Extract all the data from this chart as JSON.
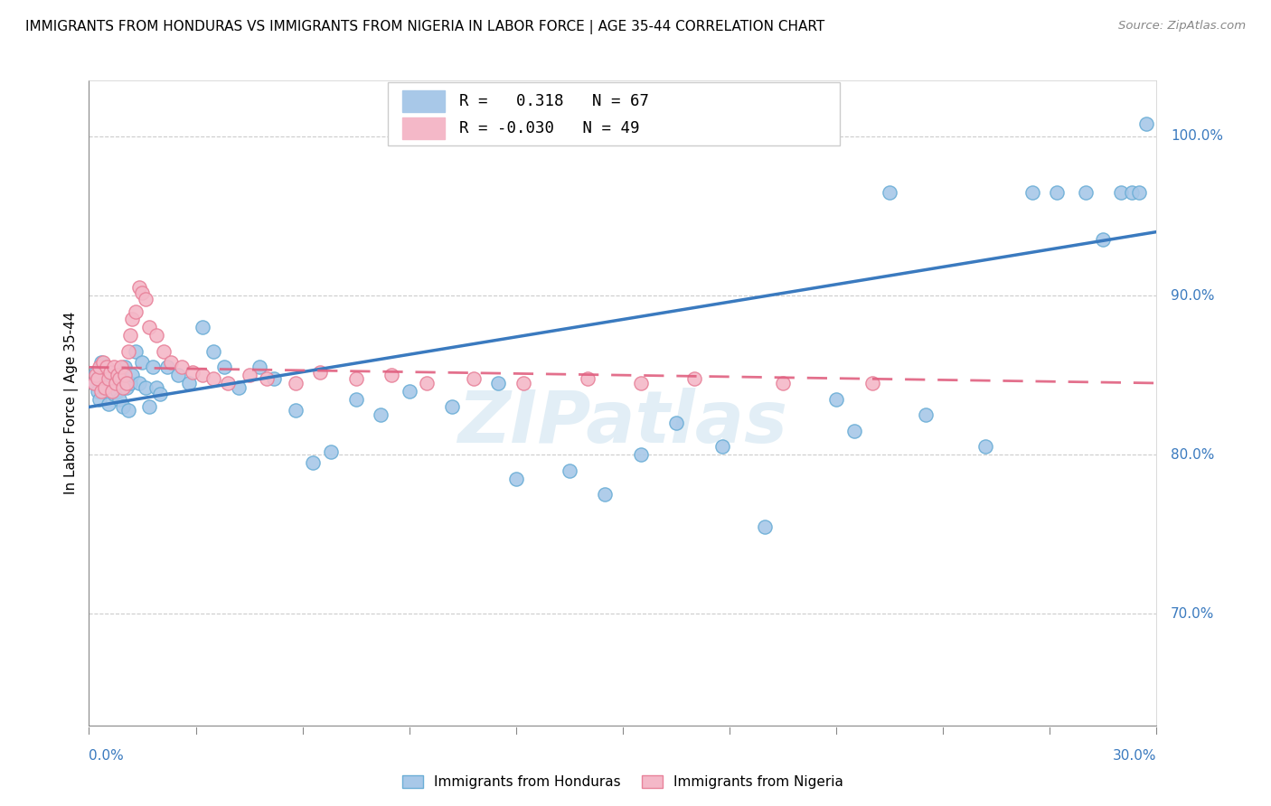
{
  "title": "IMMIGRANTS FROM HONDURAS VS IMMIGRANTS FROM NIGERIA IN LABOR FORCE | AGE 35-44 CORRELATION CHART",
  "source": "Source: ZipAtlas.com",
  "ylabel": "In Labor Force | Age 35-44",
  "yticks": [
    70.0,
    80.0,
    90.0,
    100.0
  ],
  "ytick_labels": [
    "70.0%",
    "80.0%",
    "90.0%",
    "100.0%"
  ],
  "xmin": 0.0,
  "xmax": 30.0,
  "ymin": 63.0,
  "ymax": 103.5,
  "r_honduras": 0.318,
  "n_honduras": 67,
  "r_nigeria": -0.03,
  "n_nigeria": 49,
  "blue_color": "#a8c8e8",
  "blue_edge_color": "#6baed6",
  "blue_line_color": "#3a7abf",
  "pink_color": "#f4b8c8",
  "pink_edge_color": "#e8829a",
  "pink_line_color": "#e06080",
  "watermark": "ZIPatlas",
  "legend_label_honduras": "Immigrants from Honduras",
  "legend_label_nigeria": "Immigrants from Nigeria",
  "hond_x": [
    0.15,
    0.2,
    0.25,
    0.3,
    0.35,
    0.4,
    0.45,
    0.5,
    0.55,
    0.6,
    0.65,
    0.7,
    0.75,
    0.8,
    0.85,
    0.9,
    0.95,
    1.0,
    1.05,
    1.1,
    1.15,
    1.2,
    1.3,
    1.4,
    1.5,
    1.6,
    1.7,
    1.8,
    1.9,
    2.0,
    2.2,
    2.5,
    2.8,
    3.2,
    3.5,
    3.8,
    4.2,
    4.8,
    5.2,
    5.8,
    6.3,
    6.8,
    7.5,
    8.2,
    9.0,
    10.2,
    11.5,
    12.0,
    13.5,
    14.5,
    15.5,
    16.5,
    17.8,
    19.0,
    21.5,
    23.5,
    25.2,
    26.5,
    27.2,
    28.0,
    28.5,
    29.0,
    29.3,
    29.5,
    29.7,
    21.0,
    22.5
  ],
  "hond_y": [
    84.5,
    85.2,
    84.0,
    83.5,
    85.8,
    84.2,
    85.5,
    84.8,
    83.2,
    85.0,
    84.5,
    83.8,
    85.2,
    84.0,
    83.5,
    84.8,
    83.0,
    85.5,
    84.2,
    82.8,
    84.5,
    85.0,
    86.5,
    84.5,
    85.8,
    84.2,
    83.0,
    85.5,
    84.2,
    83.8,
    85.5,
    85.0,
    84.5,
    88.0,
    86.5,
    85.5,
    84.2,
    85.5,
    84.8,
    82.8,
    79.5,
    80.2,
    83.5,
    82.5,
    84.0,
    83.0,
    84.5,
    78.5,
    79.0,
    77.5,
    80.0,
    82.0,
    80.5,
    75.5,
    81.5,
    82.5,
    80.5,
    96.5,
    96.5,
    96.5,
    93.5,
    96.5,
    96.5,
    96.5,
    100.8,
    83.5,
    96.5
  ],
  "nig_x": [
    0.15,
    0.2,
    0.25,
    0.3,
    0.35,
    0.4,
    0.45,
    0.5,
    0.55,
    0.6,
    0.65,
    0.7,
    0.75,
    0.8,
    0.85,
    0.9,
    0.95,
    1.0,
    1.05,
    1.1,
    1.15,
    1.2,
    1.3,
    1.4,
    1.5,
    1.6,
    1.7,
    1.9,
    2.1,
    2.3,
    2.6,
    2.9,
    3.2,
    3.5,
    3.9,
    4.5,
    5.0,
    5.8,
    6.5,
    7.5,
    8.5,
    9.5,
    10.8,
    12.2,
    14.0,
    15.5,
    17.0,
    19.5,
    22.0
  ],
  "nig_y": [
    84.5,
    85.0,
    84.8,
    85.5,
    84.0,
    85.8,
    84.2,
    85.5,
    84.8,
    85.2,
    84.0,
    85.5,
    84.5,
    85.0,
    84.8,
    85.5,
    84.2,
    85.0,
    84.5,
    86.5,
    87.5,
    88.5,
    89.0,
    90.5,
    90.2,
    89.8,
    88.0,
    87.5,
    86.5,
    85.8,
    85.5,
    85.2,
    85.0,
    84.8,
    84.5,
    85.0,
    84.8,
    84.5,
    85.2,
    84.8,
    85.0,
    84.5,
    84.8,
    84.5,
    84.8,
    84.5,
    84.8,
    84.5,
    84.5
  ]
}
